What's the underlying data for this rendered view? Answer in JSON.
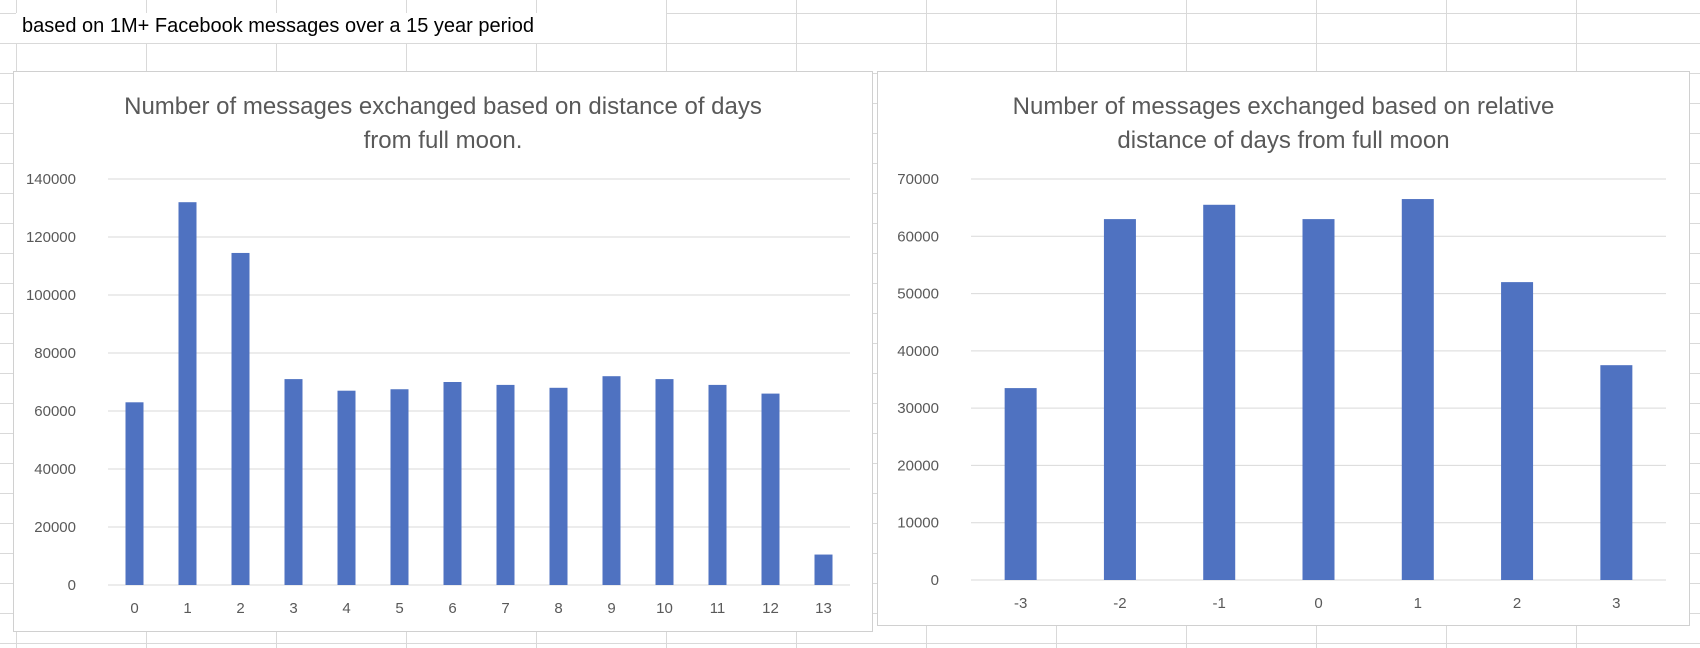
{
  "sheet": {
    "note": "based on 1M+ Facebook messages over a 15 year period"
  },
  "colors": {
    "bar": "#4f72c1",
    "gridline": "#d9d9d9",
    "axis_text": "#595959"
  },
  "chart_data": [
    {
      "type": "bar",
      "title_lines": [
        "Number of messages exchanged based on distance of days",
        "from full moon."
      ],
      "xlabel": "",
      "ylabel": "",
      "categories": [
        "0",
        "1",
        "2",
        "3",
        "4",
        "5",
        "6",
        "7",
        "8",
        "9",
        "10",
        "11",
        "12",
        "13"
      ],
      "values": [
        63000,
        132000,
        114500,
        71000,
        67000,
        67500,
        70000,
        69000,
        68000,
        72000,
        71000,
        69000,
        66000,
        10500
      ],
      "ylim": [
        0,
        140000
      ],
      "yticks": [
        0,
        20000,
        40000,
        60000,
        80000,
        100000,
        120000,
        140000
      ],
      "grid": true,
      "legend": "none"
    },
    {
      "type": "bar",
      "title_lines": [
        "Number of messages exchanged based on relative",
        "distance of days from full moon"
      ],
      "xlabel": "",
      "ylabel": "",
      "categories": [
        "-3",
        "-2",
        "-1",
        "0",
        "1",
        "2",
        "3"
      ],
      "values": [
        33500,
        63000,
        65500,
        63000,
        66500,
        52000,
        37500
      ],
      "ylim": [
        0,
        70000
      ],
      "yticks": [
        0,
        10000,
        20000,
        30000,
        40000,
        50000,
        60000,
        70000
      ],
      "grid": true,
      "legend": "none"
    }
  ]
}
